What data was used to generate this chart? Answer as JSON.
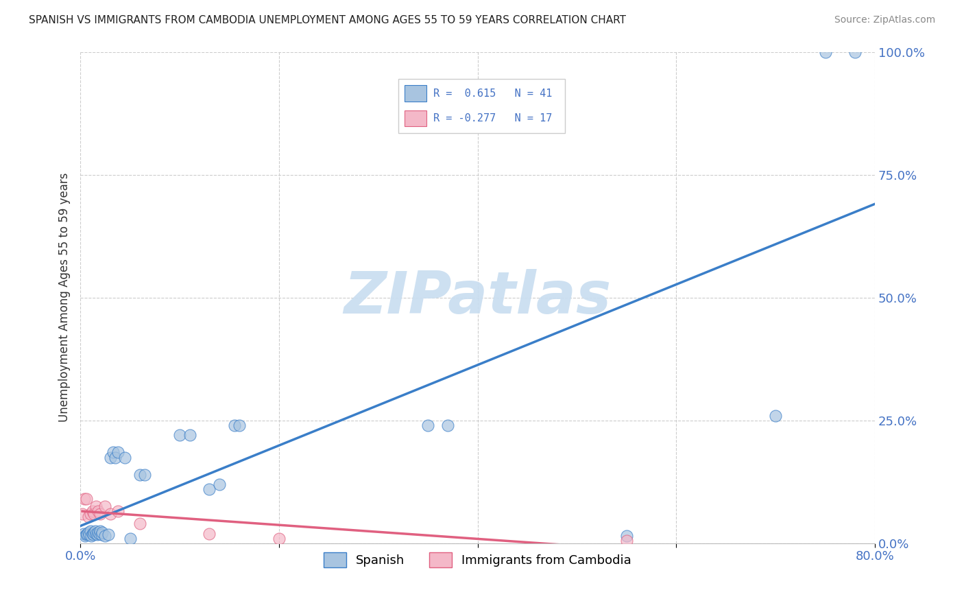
{
  "title": "SPANISH VS IMMIGRANTS FROM CAMBODIA UNEMPLOYMENT AMONG AGES 55 TO 59 YEARS CORRELATION CHART",
  "source": "Source: ZipAtlas.com",
  "ylabel": "Unemployment Among Ages 55 to 59 years",
  "xlim": [
    0.0,
    0.8
  ],
  "ylim": [
    0.0,
    1.0
  ],
  "xticks": [
    0.0,
    0.2,
    0.4,
    0.6,
    0.8
  ],
  "xticklabels": [
    "0.0%",
    "",
    "",
    "",
    "80.0%"
  ],
  "yticks": [
    0.0,
    0.25,
    0.5,
    0.75,
    1.0
  ],
  "yticklabels": [
    "0.0%",
    "25.0%",
    "50.0%",
    "75.0%",
    "100.0%"
  ],
  "spanish_color": "#a8c4e0",
  "cambodia_color": "#f4b8c8",
  "trendline_spanish_color": "#3a7ec8",
  "trendline_cambodia_color": "#e06080",
  "spanish_R": 0.615,
  "spanish_N": 41,
  "cambodia_R": -0.277,
  "cambodia_N": 17,
  "watermark": "ZIPatlas",
  "watermark_color": "#c8ddf0",
  "spanish_x": [
    0.003,
    0.005,
    0.006,
    0.007,
    0.008,
    0.009,
    0.01,
    0.011,
    0.012,
    0.013,
    0.014,
    0.015,
    0.016,
    0.017,
    0.018,
    0.019,
    0.02,
    0.021,
    0.022,
    0.025,
    0.028,
    0.03,
    0.033,
    0.035,
    0.038,
    0.045,
    0.05,
    0.06,
    0.065,
    0.1,
    0.11,
    0.13,
    0.14,
    0.155,
    0.16,
    0.35,
    0.37,
    0.55,
    0.7,
    0.75,
    0.78
  ],
  "spanish_y": [
    0.02,
    0.015,
    0.018,
    0.02,
    0.022,
    0.018,
    0.025,
    0.015,
    0.02,
    0.018,
    0.022,
    0.025,
    0.02,
    0.018,
    0.022,
    0.02,
    0.025,
    0.018,
    0.022,
    0.015,
    0.018,
    0.175,
    0.185,
    0.175,
    0.185,
    0.175,
    0.01,
    0.14,
    0.14,
    0.22,
    0.22,
    0.11,
    0.12,
    0.24,
    0.24,
    0.24,
    0.24,
    0.015,
    0.26,
    1.0,
    1.0
  ],
  "cambodia_x": [
    0.002,
    0.004,
    0.006,
    0.008,
    0.01,
    0.012,
    0.014,
    0.016,
    0.018,
    0.02,
    0.025,
    0.03,
    0.038,
    0.06,
    0.13,
    0.2,
    0.55
  ],
  "cambodia_y": [
    0.06,
    0.09,
    0.09,
    0.055,
    0.06,
    0.065,
    0.06,
    0.075,
    0.065,
    0.06,
    0.075,
    0.06,
    0.065,
    0.04,
    0.02,
    0.01,
    0.005
  ]
}
